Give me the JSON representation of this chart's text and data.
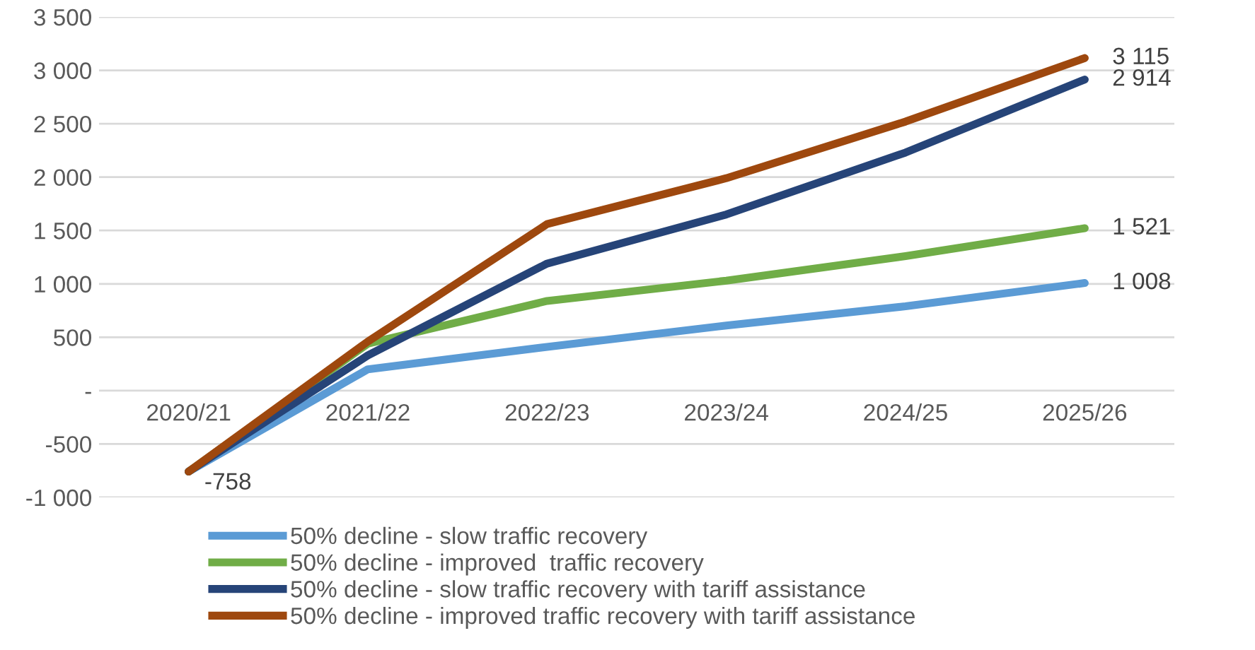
{
  "chart_data": {
    "type": "line",
    "categories": [
      "2020/21",
      "2021/22",
      "2022/23",
      "2023/24",
      "2024/25",
      "2025/26"
    ],
    "series": [
      {
        "name": "50% decline - slow traffic recovery",
        "color": "#5b9bd5",
        "values": [
          -758,
          200,
          410,
          610,
          790,
          1008
        ],
        "value_labels": [
          null,
          null,
          null,
          null,
          null,
          "1 008"
        ]
      },
      {
        "name": "50% decline - improved  traffic recovery",
        "color": "#70ad47",
        "values": [
          -758,
          440,
          840,
          1030,
          1260,
          1521
        ],
        "value_labels": [
          null,
          null,
          null,
          null,
          null,
          "1 521"
        ]
      },
      {
        "name": "50% decline - slow traffic recovery with tariff assistance",
        "color": "#264478",
        "values": [
          -758,
          330,
          1190,
          1650,
          2230,
          2914
        ],
        "value_labels": [
          "-758",
          null,
          null,
          null,
          null,
          "2 914"
        ]
      },
      {
        "name": "50% decline - improved traffic recovery with tariff assistance",
        "color": "#9e480e",
        "values": [
          -758,
          460,
          1560,
          1990,
          2520,
          3115
        ],
        "value_labels": [
          null,
          null,
          null,
          null,
          null,
          "3 115"
        ]
      }
    ],
    "ylim": [
      -1000,
      3500
    ],
    "yticks": [
      {
        "value": -1000,
        "label": "-1 000"
      },
      {
        "value": -500,
        "label": "-500"
      },
      {
        "value": 0,
        "label": "-"
      },
      {
        "value": 500,
        "label": "500"
      },
      {
        "value": 1000,
        "label": "1 000"
      },
      {
        "value": 1500,
        "label": "1 500"
      },
      {
        "value": 2000,
        "label": "2 000"
      },
      {
        "value": 2500,
        "label": "2 500"
      },
      {
        "value": 3000,
        "label": "3 000"
      },
      {
        "value": 3500,
        "label": "3 500"
      }
    ],
    "grid": "y",
    "legend": "bottom",
    "marker": "none",
    "line_style": "solid"
  }
}
